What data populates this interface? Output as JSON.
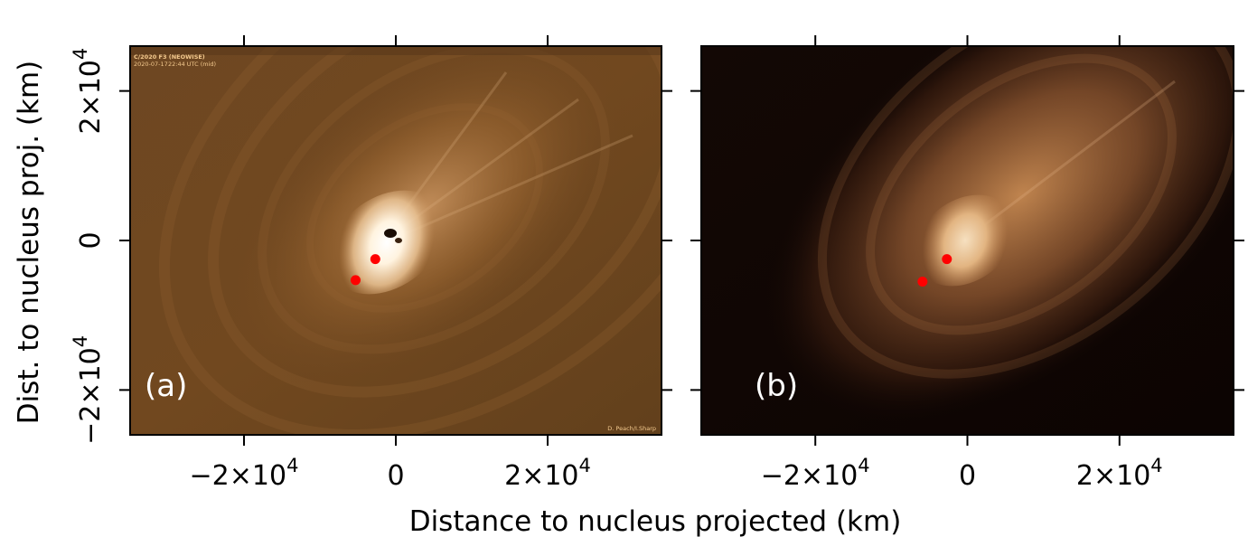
{
  "figure": {
    "x_axis_title": "Distance to nucleus projected (km)",
    "y_axis_title": "Dist. to nucleus proj. (km)",
    "x_ticks": [
      {
        "value": -20000,
        "base": "−2×10",
        "exp": "4"
      },
      {
        "value": 0,
        "base": "0",
        "exp": ""
      },
      {
        "value": 20000,
        "base": "2×10",
        "exp": "4"
      }
    ],
    "y_ticks": [
      {
        "value": 20000,
        "base": "2×10",
        "exp": "4"
      },
      {
        "value": 0,
        "base": "0",
        "exp": ""
      },
      {
        "value": -20000,
        "base": "−2×10",
        "exp": "4"
      }
    ],
    "x_range_km": [
      -35000,
      35000
    ],
    "y_range_km": [
      -26000,
      26000
    ]
  },
  "panels": [
    {
      "id": "a",
      "label": "(a)",
      "image_kind": "processed observation",
      "overlay_title": "C/2020 F3 (NEOWISE)",
      "overlay_date": "2020-07-17",
      "overlay_time": "22:44 UTC (mid)",
      "credit": "D. Peach/I.Sharp",
      "markers": [
        {
          "x_km": -2700,
          "y_km": -2500,
          "color": "#ff0000"
        },
        {
          "x_km": -5300,
          "y_km": -5300,
          "color": "#ff0000"
        }
      ]
    },
    {
      "id": "b",
      "label": "(b)",
      "image_kind": "simulation",
      "markers": [
        {
          "x_km": -2700,
          "y_km": -2500,
          "color": "#ff0000"
        },
        {
          "x_km": -5900,
          "y_km": -5500,
          "color": "#ff0000"
        }
      ]
    }
  ],
  "colors": {
    "coma_core": "#fff6e8",
    "coma_mid": "#d7a06a",
    "background_a": "#6a4420",
    "background_b": "#100604",
    "marker": "#ff0000"
  }
}
